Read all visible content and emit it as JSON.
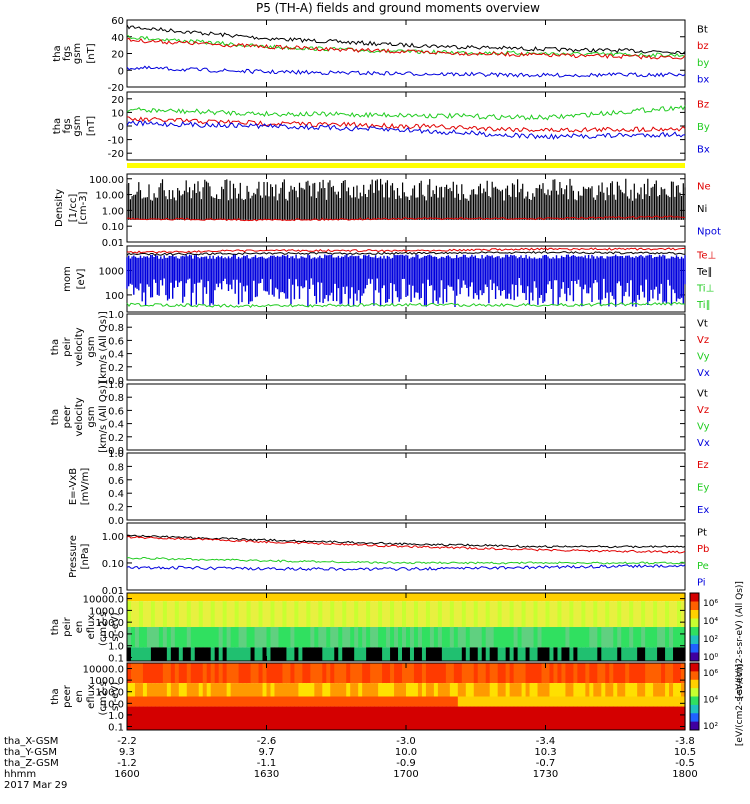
{
  "title": "P5 (TH-A) fields and ground moments overview",
  "colors": {
    "black": "#000000",
    "red": "#e00000",
    "green": "#22cc22",
    "blue": "#0000dd",
    "yellow": "#ffff00"
  },
  "panels": [
    {
      "id": "fgs",
      "ylabel": [
        "tha",
        "fgs",
        "gsm",
        "[nT]"
      ],
      "ticks": [
        "60",
        "40",
        "20",
        "0",
        "-20"
      ],
      "tickvals": [
        60,
        40,
        20,
        0,
        -20
      ],
      "ylim": [
        -20,
        60
      ],
      "log": false,
      "legend": [
        {
          "text": "Bt",
          "color": "#000000"
        },
        {
          "text": "bz",
          "color": "#e00000"
        },
        {
          "text": "by",
          "color": "#22cc22"
        },
        {
          "text": "bx",
          "color": "#0000dd"
        }
      ]
    },
    {
      "id": "fgs2",
      "ylabel": [
        "tha",
        "fgs",
        "gsm",
        "[nT]"
      ],
      "ticks": [
        "20",
        "10",
        "0",
        "-10",
        "-20"
      ],
      "tickvals": [
        20,
        10,
        0,
        -10,
        -20
      ],
      "ylim": [
        -25,
        25
      ],
      "log": false,
      "legend": [
        {
          "text": "Bz",
          "color": "#e00000"
        },
        {
          "text": "By",
          "color": "#22cc22"
        },
        {
          "text": "Bx",
          "color": "#0000dd"
        }
      ]
    },
    {
      "id": "density",
      "ylabel": [
        "Density",
        "[1/cc]",
        "[cm-3]"
      ],
      "ticks": [
        "100.00",
        "10.00",
        "1.00",
        "0.10",
        "0.01"
      ],
      "tickvals": [
        100,
        10,
        1,
        0.1,
        0.01
      ],
      "ylim": [
        0.01,
        200
      ],
      "log": true,
      "legend": [
        {
          "text": "Ne",
          "color": "#e00000"
        },
        {
          "text": "Ni",
          "color": "#000000"
        },
        {
          "text": "Npot",
          "color": "#0000dd"
        }
      ]
    },
    {
      "id": "temp",
      "ylabel": [
        "mom",
        "[eV]"
      ],
      "ticks": [
        "1000",
        "100"
      ],
      "tickvals": [
        1000,
        100
      ],
      "ylim": [
        20,
        10000
      ],
      "log": true,
      "legend": [
        {
          "text": "Te⊥",
          "color": "#e00000"
        },
        {
          "text": "Te∥",
          "color": "#000000"
        },
        {
          "text": "Ti⊥",
          "color": "#22cc22"
        },
        {
          "text": "Ti∥",
          "color": "#22cc22"
        }
      ]
    },
    {
      "id": "peirvel",
      "ylabel": [
        "tha",
        "peir",
        "velocity",
        "gsm",
        "[km/s (All Qs)]"
      ],
      "ticks": [
        "1.0",
        "0.8",
        "0.6",
        "0.4",
        "0.2",
        "0.0"
      ],
      "tickvals": [
        1,
        0.8,
        0.6,
        0.4,
        0.2,
        0
      ],
      "ylim": [
        0,
        1
      ],
      "log": false,
      "legend": [
        {
          "text": "Vt",
          "color": "#000000"
        },
        {
          "text": "Vz",
          "color": "#e00000"
        },
        {
          "text": "Vy",
          "color": "#22cc22"
        },
        {
          "text": "Vx",
          "color": "#0000dd"
        }
      ]
    },
    {
      "id": "peervel",
      "ylabel": [
        "tha",
        "peer",
        "velocity",
        "gsm",
        "[km/s (All Qs)]"
      ],
      "ticks": [
        "1.0",
        "0.8",
        "0.6",
        "0.4",
        "0.2",
        "0.0"
      ],
      "tickvals": [
        1,
        0.8,
        0.6,
        0.4,
        0.2,
        0
      ],
      "ylim": [
        0,
        1
      ],
      "log": false,
      "legend": [
        {
          "text": "Vt",
          "color": "#000000"
        },
        {
          "text": "Vz",
          "color": "#e00000"
        },
        {
          "text": "Vy",
          "color": "#22cc22"
        },
        {
          "text": "Vx",
          "color": "#0000dd"
        }
      ]
    },
    {
      "id": "efield",
      "ylabel": [
        "E=-VxB",
        "[mV/m]"
      ],
      "ticks": [
        "1.0",
        "0.8",
        "0.6",
        "0.4",
        "0.2",
        "0.0"
      ],
      "tickvals": [
        1,
        0.8,
        0.6,
        0.4,
        0.2,
        0
      ],
      "ylim": [
        0,
        1
      ],
      "log": false,
      "legend": [
        {
          "text": "Ez",
          "color": "#e00000"
        },
        {
          "text": "Ey",
          "color": "#22cc22"
        },
        {
          "text": "Ex",
          "color": "#0000dd"
        }
      ]
    },
    {
      "id": "pressure",
      "ylabel": [
        "Pressure",
        "[nPa]"
      ],
      "ticks": [
        "1.00",
        "0.10",
        "0.01"
      ],
      "tickvals": [
        1,
        0.1,
        0.01
      ],
      "ylim": [
        0.01,
        3
      ],
      "log": true,
      "legend": [
        {
          "text": "Pt",
          "color": "#000000"
        },
        {
          "text": "Pb",
          "color": "#e00000"
        },
        {
          "text": "Pe",
          "color": "#22cc22"
        },
        {
          "text": "Pi",
          "color": "#0000dd"
        }
      ]
    },
    {
      "id": "peiren",
      "ylabel": [
        "tha",
        "peir",
        "en",
        "eflux",
        "(cm2-s-",
        "sr-eV)"
      ],
      "ticks": [
        "10000.0",
        "1000.0",
        "100.0",
        "10.0",
        "1.0",
        "0.1"
      ],
      "tickvals": [
        10000,
        1000,
        100,
        10,
        1,
        0.1
      ],
      "ylim": [
        0.05,
        30000
      ],
      "log": true,
      "legend": []
    },
    {
      "id": "peeren",
      "ylabel": [
        "tha",
        "peer",
        "en",
        "eflux",
        "(cm2-s-",
        "sr-eV)"
      ],
      "ticks": [
        "10000.0",
        "1000.0",
        "100.0",
        "10.0",
        "1.0",
        "0.1"
      ],
      "tickvals": [
        10000,
        1000,
        100,
        10,
        1,
        0.1
      ],
      "ylim": [
        0.05,
        30000
      ],
      "log": true,
      "legend": []
    }
  ],
  "colorbar": {
    "ticks": [
      "10⁶",
      "10⁴",
      "10²",
      "10⁰"
    ],
    "ticks2": [
      "10⁶",
      "10⁴",
      "10²"
    ],
    "label": "[eV/(cm2-s-sr-eV) (All Qs)]",
    "label2": "[eV/(cm2-s-sr-eV)]"
  },
  "xaxis": {
    "rows": [
      {
        "label": "tha_X-GSM",
        "values": [
          "-2.2",
          "-2.6",
          "-3.0",
          "-3.4",
          "-3.8"
        ]
      },
      {
        "label": "tha_Y-GSM",
        "values": [
          "9.3",
          "9.7",
          "10.0",
          "10.3",
          "10.5"
        ]
      },
      {
        "label": "tha_Z-GSM",
        "values": [
          "-1.2",
          "-1.1",
          "-0.9",
          "-0.7",
          "-0.5"
        ]
      },
      {
        "label": "hhmm",
        "values": [
          "1600",
          "1630",
          "1700",
          "1730",
          "1800"
        ]
      }
    ],
    "date": "2017 Mar 29"
  },
  "chart_data": [
    {
      "type": "line",
      "title": "P5 (TH-A) fields and ground moments overview",
      "ylabel": "tha fgs gsm [nT]",
      "ylim": [
        -20,
        60
      ],
      "x": [
        "1600",
        "1630",
        "1700",
        "1730",
        "1800"
      ],
      "series": [
        {
          "name": "Bt",
          "values": [
            52,
            38,
            30,
            25,
            22
          ]
        },
        {
          "name": "bz",
          "values": [
            36,
            28,
            22,
            18,
            15
          ]
        },
        {
          "name": "by",
          "values": [
            40,
            28,
            22,
            20,
            18
          ]
        },
        {
          "name": "bx",
          "values": [
            3,
            -2,
            -4,
            -6,
            -5
          ]
        }
      ]
    },
    {
      "type": "line",
      "ylabel": "tha fgs gsm [nT]",
      "ylim": [
        -25,
        25
      ],
      "x": [
        "1600",
        "1630",
        "1700",
        "1730",
        "1800"
      ],
      "series": [
        {
          "name": "Bz",
          "values": [
            5,
            2,
            0,
            -3,
            -2
          ]
        },
        {
          "name": "By",
          "values": [
            12,
            9,
            8,
            6,
            14
          ]
        },
        {
          "name": "Bx",
          "values": [
            2,
            0,
            -3,
            -8,
            -6
          ]
        }
      ]
    },
    {
      "type": "line",
      "ylabel": "Density [1/cc] [cm-3]",
      "ylim": [
        0.01,
        200
      ],
      "scale": "log",
      "x": [
        "1600",
        "1630",
        "1700",
        "1730",
        "1800"
      ],
      "series": [
        {
          "name": "Ne",
          "values": [
            0.3,
            0.25,
            0.3,
            0.3,
            0.4
          ]
        },
        {
          "name": "Ni",
          "values": [
            10,
            20,
            30,
            40,
            30
          ]
        }
      ]
    },
    {
      "type": "line",
      "ylabel": "mom [eV]",
      "ylim": [
        20,
        10000
      ],
      "scale": "log",
      "x": [
        "1600",
        "1630",
        "1700",
        "1730",
        "1800"
      ],
      "series": [
        {
          "name": "Te⊥",
          "values": [
            5000,
            6000,
            6000,
            7000,
            7000
          ]
        },
        {
          "name": "Ti∥",
          "values": [
            400,
            300,
            300,
            300,
            400
          ]
        }
      ]
    },
    {
      "type": "line",
      "ylabel": "Pressure [nPa]",
      "ylim": [
        0.01,
        3
      ],
      "scale": "log",
      "x": [
        "1600",
        "1630",
        "1700",
        "1730",
        "1800"
      ],
      "series": [
        {
          "name": "Pt",
          "values": [
            1.0,
            0.7,
            0.5,
            0.4,
            0.4
          ]
        },
        {
          "name": "Pb",
          "values": [
            0.9,
            0.6,
            0.4,
            0.3,
            0.25
          ]
        },
        {
          "name": "Pe",
          "values": [
            0.15,
            0.12,
            0.1,
            0.1,
            0.1
          ]
        },
        {
          "name": "Pi",
          "values": [
            0.07,
            0.06,
            0.06,
            0.07,
            0.08
          ]
        }
      ]
    }
  ]
}
